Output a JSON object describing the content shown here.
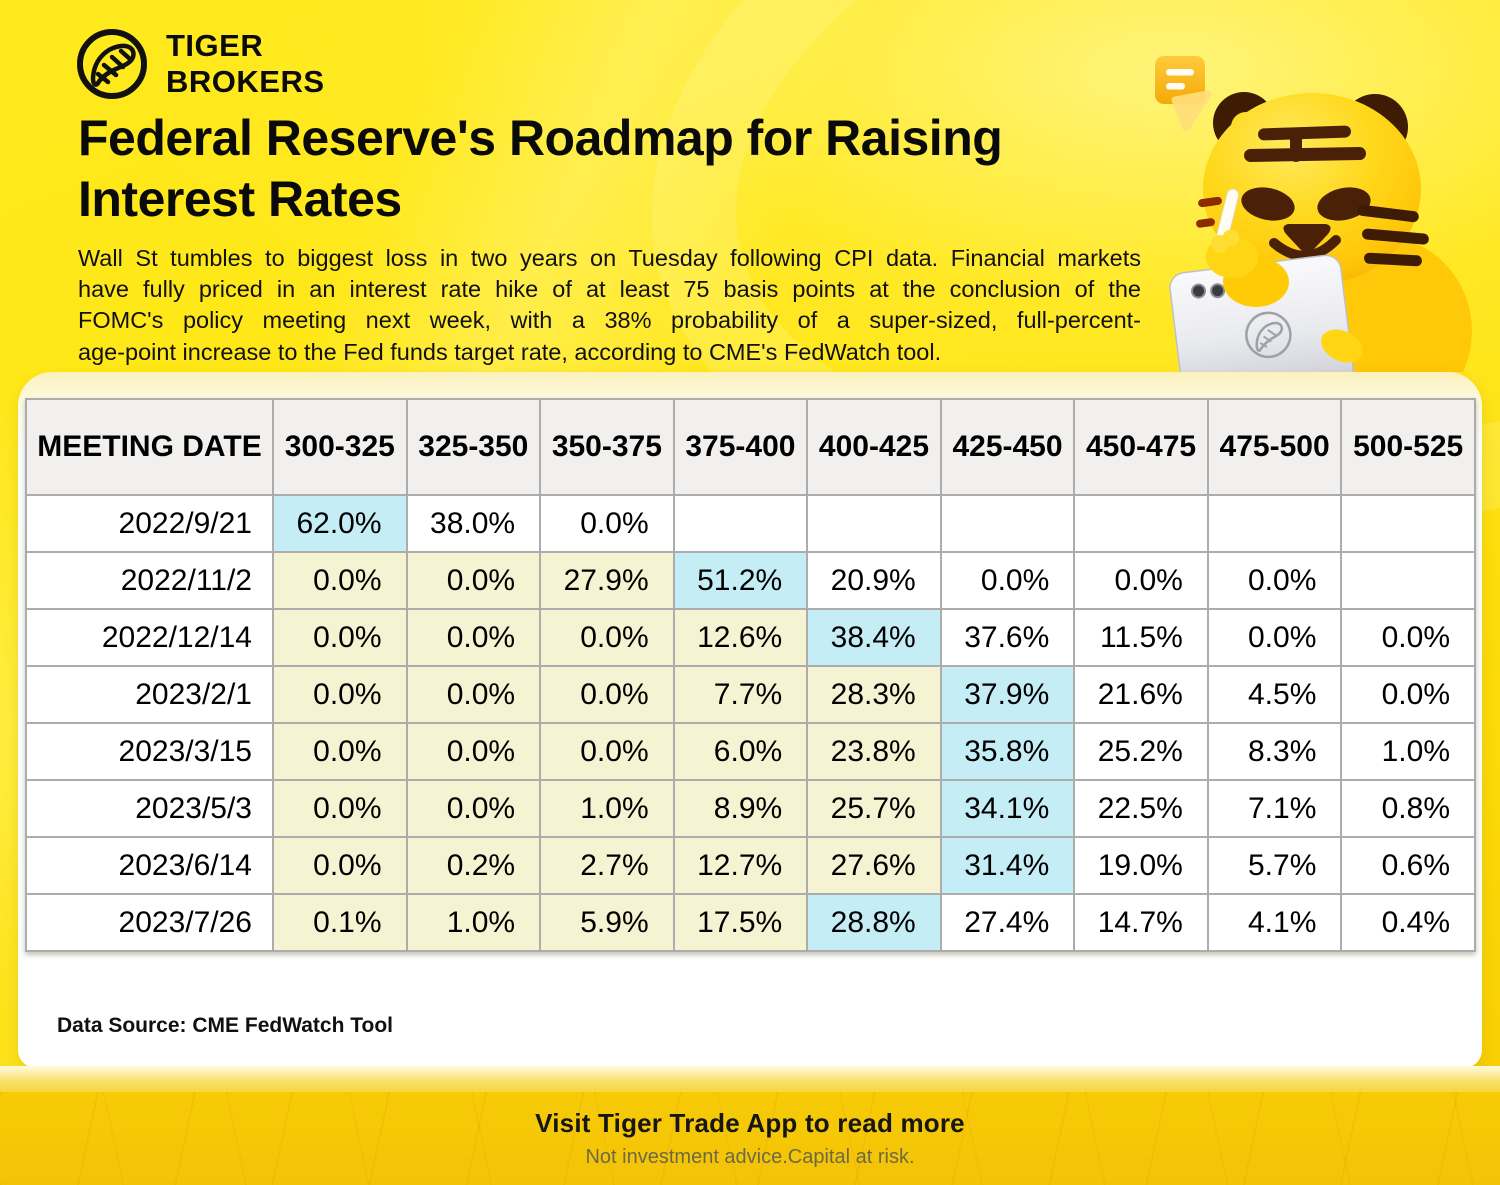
{
  "brand": {
    "line1": "TIGER",
    "line2": "BROKERS"
  },
  "header": {
    "title_line1": "Federal Reserve's Roadmap for Raising",
    "title_line2": "Interest Rates",
    "subtitle_lines": [
      "Wall St tumbles to biggest loss in two years on Tuesday following CPI data. Financial markets",
      "have fully priced in an interest rate hike of at least 75 basis points at the conclusion of the",
      "FOMC's policy meeting next week, with a 38% probability of a super-sized, full-percent-",
      "age-point increase to the Fed funds target rate, according to CME's FedWatch tool."
    ]
  },
  "table": {
    "columns": [
      "MEETING DATE",
      "300-325",
      "325-350",
      "350-375",
      "375-400",
      "400-425",
      "425-450",
      "450-475",
      "475-500",
      "500-525"
    ],
    "rows": [
      {
        "date": "2022/9/21",
        "cells": [
          {
            "v": "62.0%",
            "bg": "max"
          },
          {
            "v": "38.0%",
            "bg": "plain"
          },
          {
            "v": "0.0%",
            "bg": "plain"
          },
          {
            "v": "",
            "bg": "plain"
          },
          {
            "v": "",
            "bg": "plain"
          },
          {
            "v": "",
            "bg": "plain"
          },
          {
            "v": "",
            "bg": "plain"
          },
          {
            "v": "",
            "bg": "plain"
          },
          {
            "v": "",
            "bg": "plain"
          }
        ]
      },
      {
        "date": "2022/11/2",
        "cells": [
          {
            "v": "0.0%",
            "bg": "pre"
          },
          {
            "v": "0.0%",
            "bg": "pre"
          },
          {
            "v": "27.9%",
            "bg": "pre"
          },
          {
            "v": "51.2%",
            "bg": "max"
          },
          {
            "v": "20.9%",
            "bg": "plain"
          },
          {
            "v": "0.0%",
            "bg": "plain"
          },
          {
            "v": "0.0%",
            "bg": "plain"
          },
          {
            "v": "0.0%",
            "bg": "plain"
          },
          {
            "v": "",
            "bg": "plain"
          }
        ]
      },
      {
        "date": "2022/12/14",
        "cells": [
          {
            "v": "0.0%",
            "bg": "pre"
          },
          {
            "v": "0.0%",
            "bg": "pre"
          },
          {
            "v": "0.0%",
            "bg": "pre"
          },
          {
            "v": "12.6%",
            "bg": "pre"
          },
          {
            "v": "38.4%",
            "bg": "max"
          },
          {
            "v": "37.6%",
            "bg": "plain"
          },
          {
            "v": "11.5%",
            "bg": "plain"
          },
          {
            "v": "0.0%",
            "bg": "plain"
          },
          {
            "v": "0.0%",
            "bg": "plain"
          }
        ]
      },
      {
        "date": "2023/2/1",
        "cells": [
          {
            "v": "0.0%",
            "bg": "pre"
          },
          {
            "v": "0.0%",
            "bg": "pre"
          },
          {
            "v": "0.0%",
            "bg": "pre"
          },
          {
            "v": "7.7%",
            "bg": "pre"
          },
          {
            "v": "28.3%",
            "bg": "pre"
          },
          {
            "v": "37.9%",
            "bg": "max"
          },
          {
            "v": "21.6%",
            "bg": "plain"
          },
          {
            "v": "4.5%",
            "bg": "plain"
          },
          {
            "v": "0.0%",
            "bg": "plain"
          }
        ]
      },
      {
        "date": "2023/3/15",
        "cells": [
          {
            "v": "0.0%",
            "bg": "pre"
          },
          {
            "v": "0.0%",
            "bg": "pre"
          },
          {
            "v": "0.0%",
            "bg": "pre"
          },
          {
            "v": "6.0%",
            "bg": "pre"
          },
          {
            "v": "23.8%",
            "bg": "pre"
          },
          {
            "v": "35.8%",
            "bg": "max"
          },
          {
            "v": "25.2%",
            "bg": "plain"
          },
          {
            "v": "8.3%",
            "bg": "plain"
          },
          {
            "v": "1.0%",
            "bg": "plain"
          }
        ]
      },
      {
        "date": "2023/5/3",
        "cells": [
          {
            "v": "0.0%",
            "bg": "pre"
          },
          {
            "v": "0.0%",
            "bg": "pre"
          },
          {
            "v": "1.0%",
            "bg": "pre"
          },
          {
            "v": "8.9%",
            "bg": "pre"
          },
          {
            "v": "25.7%",
            "bg": "pre"
          },
          {
            "v": "34.1%",
            "bg": "max"
          },
          {
            "v": "22.5%",
            "bg": "plain"
          },
          {
            "v": "7.1%",
            "bg": "plain"
          },
          {
            "v": "0.8%",
            "bg": "plain"
          }
        ]
      },
      {
        "date": "2023/6/14",
        "cells": [
          {
            "v": "0.0%",
            "bg": "pre"
          },
          {
            "v": "0.2%",
            "bg": "pre"
          },
          {
            "v": "2.7%",
            "bg": "pre"
          },
          {
            "v": "12.7%",
            "bg": "pre"
          },
          {
            "v": "27.6%",
            "bg": "pre"
          },
          {
            "v": "31.4%",
            "bg": "max"
          },
          {
            "v": "19.0%",
            "bg": "plain"
          },
          {
            "v": "5.7%",
            "bg": "plain"
          },
          {
            "v": "0.6%",
            "bg": "plain"
          }
        ]
      },
      {
        "date": "2023/7/26",
        "cells": [
          {
            "v": "0.1%",
            "bg": "pre"
          },
          {
            "v": "1.0%",
            "bg": "pre"
          },
          {
            "v": "5.9%",
            "bg": "pre"
          },
          {
            "v": "17.5%",
            "bg": "pre"
          },
          {
            "v": "28.8%",
            "bg": "max"
          },
          {
            "v": "27.4%",
            "bg": "plain"
          },
          {
            "v": "14.7%",
            "bg": "plain"
          },
          {
            "v": "4.1%",
            "bg": "plain"
          },
          {
            "v": "0.4%",
            "bg": "plain"
          }
        ]
      }
    ]
  },
  "card": {
    "source": "Data Source: CME FedWatch Tool"
  },
  "footer": {
    "cta": "Visit Tiger Trade App to read more",
    "disclaimer": "Not investment advice.Capital at risk."
  },
  "icons": {
    "logo": "tiger-tail-circle-logo",
    "note": "note-icon",
    "mascot": "tiger-mascot"
  },
  "colors": {
    "highlight_max": "#C5EDF6",
    "highlight_path": "#F6F3D2",
    "background_yellow": "#FFE512",
    "footer_gold": "#F5C708",
    "header_cell_gray": "#F1F0EE"
  },
  "chart_data": {
    "type": "table",
    "title": "Federal Reserve's Roadmap for Raising Interest Rates",
    "columns": [
      "MEETING DATE",
      "300-325",
      "325-350",
      "350-375",
      "375-400",
      "400-425",
      "425-450",
      "450-475",
      "475-500",
      "500-525"
    ],
    "unit": "probability %",
    "rows": [
      {
        "meeting_date": "2022/9/21",
        "values": [
          62.0,
          38.0,
          0.0,
          null,
          null,
          null,
          null,
          null,
          null
        ],
        "max_highlight_column": "300-325"
      },
      {
        "meeting_date": "2022/11/2",
        "values": [
          0.0,
          0.0,
          27.9,
          51.2,
          20.9,
          0.0,
          0.0,
          0.0,
          null
        ],
        "max_highlight_column": "375-400"
      },
      {
        "meeting_date": "2022/12/14",
        "values": [
          0.0,
          0.0,
          0.0,
          12.6,
          38.4,
          37.6,
          11.5,
          0.0,
          0.0
        ],
        "max_highlight_column": "400-425"
      },
      {
        "meeting_date": "2023/2/1",
        "values": [
          0.0,
          0.0,
          0.0,
          7.7,
          28.3,
          37.9,
          21.6,
          4.5,
          0.0
        ],
        "max_highlight_column": "425-450"
      },
      {
        "meeting_date": "2023/3/15",
        "values": [
          0.0,
          0.0,
          0.0,
          6.0,
          23.8,
          35.8,
          25.2,
          8.3,
          1.0
        ],
        "max_highlight_column": "425-450"
      },
      {
        "meeting_date": "2023/5/3",
        "values": [
          0.0,
          0.0,
          1.0,
          8.9,
          25.7,
          34.1,
          22.5,
          7.1,
          0.8
        ],
        "max_highlight_column": "425-450"
      },
      {
        "meeting_date": "2023/6/14",
        "values": [
          0.0,
          0.2,
          2.7,
          12.7,
          27.6,
          31.4,
          19.0,
          5.7,
          0.6
        ],
        "max_highlight_column": "425-450"
      },
      {
        "meeting_date": "2023/7/26",
        "values": [
          0.1,
          1.0,
          5.9,
          17.5,
          28.8,
          27.4,
          14.7,
          4.1,
          0.4
        ],
        "max_highlight_column": "400-425"
      }
    ],
    "source": "Data Source: CME FedWatch Tool"
  }
}
